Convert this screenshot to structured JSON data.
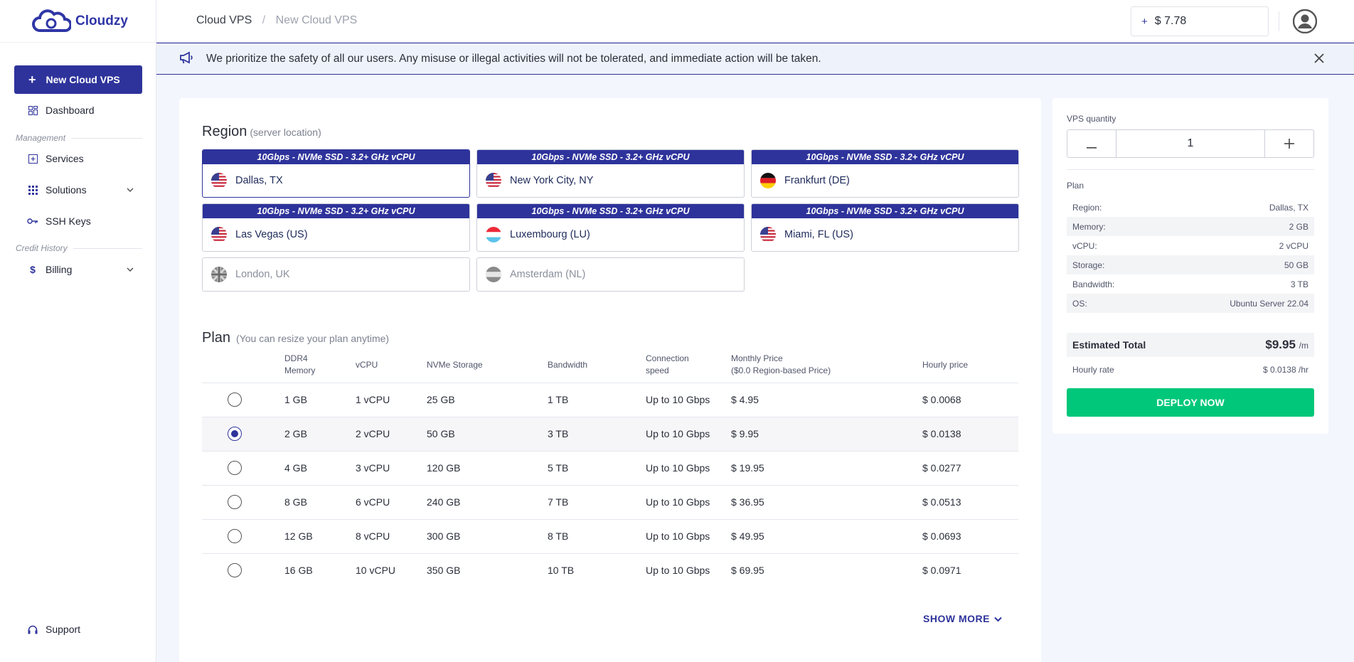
{
  "brand": {
    "name": "Cloudzy"
  },
  "sidebar": {
    "new_vps_label": "New Cloud VPS",
    "items": {
      "dashboard": "Dashboard",
      "management_section": "Management",
      "services": "Services",
      "solutions": "Solutions",
      "ssh_keys": "SSH Keys",
      "credit_section": "Credit History",
      "billing": "Billing",
      "support": "Support"
    }
  },
  "header": {
    "breadcrumb": [
      "Cloud VPS",
      "New Cloud VPS"
    ],
    "balance": "$ 7.78"
  },
  "banner": {
    "text": "We prioritize the safety of all our users. Any misuse or illegal activities will not be tolerated, and immediate action will be taken."
  },
  "region": {
    "title": "Region",
    "subtitle": "(server location)",
    "cards": [
      {
        "ribbon": "10Gbps - NVMe SSD - 3.2+ GHz vCPU",
        "name": "Dallas, TX",
        "flag": "us"
      },
      {
        "ribbon": "10Gbps - NVMe SSD - 3.2+ GHz vCPU",
        "name": "New York City, NY",
        "flag": "us"
      },
      {
        "ribbon": "10Gbps - NVMe SSD - 3.2+ GHz vCPU",
        "name": "Frankfurt (DE)",
        "flag": "de"
      },
      {
        "ribbon": "10Gbps - NVMe SSD - 3.2+ GHz vCPU",
        "name": "Las Vegas (US)",
        "flag": "us"
      },
      {
        "ribbon": "10Gbps - NVMe SSD - 3.2+ GHz vCPU",
        "name": "Luxembourg (LU)",
        "flag": "lu"
      },
      {
        "ribbon": "10Gbps - NVMe SSD - 3.2+ GHz vCPU",
        "name": "Miami, FL (US)",
        "flag": "us"
      },
      {
        "ribbon": "",
        "name": "London, UK",
        "flag": "uk-grey"
      },
      {
        "ribbon": "",
        "name": "Amsterdam (NL)",
        "flag": "nl-grey"
      }
    ]
  },
  "plan": {
    "title": "Plan",
    "subtitle": "(You can resize your plan anytime)",
    "headers": {
      "memory_1": "DDR4",
      "memory_2": "Memory",
      "vcpu": "vCPU",
      "storage": "NVMe Storage",
      "bandwidth": "Bandwidth",
      "connection_1": "Connection",
      "connection_2": "speed",
      "monthly_1": "Monthly Price",
      "monthly_2": "($0.0 Region-based Price)",
      "hourly": "Hourly price"
    },
    "rows": [
      {
        "memory": "1 GB",
        "vcpu": "1 vCPU",
        "storage": "25 GB",
        "bandwidth": "1 TB",
        "connection": "Up to 10 Gbps",
        "monthly": "$ 4.95",
        "hourly": "$ 0.0068"
      },
      {
        "memory": "2 GB",
        "vcpu": "2 vCPU",
        "storage": "50 GB",
        "bandwidth": "3 TB",
        "connection": "Up to 10 Gbps",
        "monthly": "$ 9.95",
        "hourly": "$ 0.0138"
      },
      {
        "memory": "4 GB",
        "vcpu": "3 vCPU",
        "storage": "120 GB",
        "bandwidth": "5 TB",
        "connection": "Up to 10 Gbps",
        "monthly": "$ 19.95",
        "hourly": "$ 0.0277"
      },
      {
        "memory": "8 GB",
        "vcpu": "6 vCPU",
        "storage": "240 GB",
        "bandwidth": "7 TB",
        "connection": "Up to 10 Gbps",
        "monthly": "$ 36.95",
        "hourly": "$ 0.0513"
      },
      {
        "memory": "12 GB",
        "vcpu": "8 vCPU",
        "storage": "300 GB",
        "bandwidth": "8 TB",
        "connection": "Up to 10 Gbps",
        "monthly": "$ 49.95",
        "hourly": "$ 0.0693"
      },
      {
        "memory": "16 GB",
        "vcpu": "10 vCPU",
        "storage": "350 GB",
        "bandwidth": "10 TB",
        "connection": "Up to 10 Gbps",
        "monthly": "$ 69.95",
        "hourly": "$ 0.0971"
      }
    ],
    "selected_index": 1,
    "show_more": "SHOW MORE"
  },
  "summary": {
    "qty_label": "VPS quantity",
    "qty_value": "1",
    "plan_label": "Plan",
    "specs": [
      {
        "label": "Region:",
        "value": "Dallas, TX"
      },
      {
        "label": "Memory:",
        "value": "2 GB"
      },
      {
        "label": "vCPU:",
        "value": "2 vCPU"
      },
      {
        "label": "Storage:",
        "value": "50 GB"
      },
      {
        "label": "Bandwidth:",
        "value": "3 TB"
      },
      {
        "label": "OS:",
        "value": "Ubuntu Server 22.04"
      }
    ],
    "total_label": "Estimated Total",
    "total_value": "$9.95",
    "total_unit": "/m",
    "hourly_label": "Hourly rate",
    "hourly_value": "$ 0.0138 /hr",
    "deploy_label": "DEPLOY NOW"
  },
  "colors": {
    "primary": "#2e339b",
    "deploy": "#00c77a",
    "banner_bg": "#eef3fb"
  }
}
